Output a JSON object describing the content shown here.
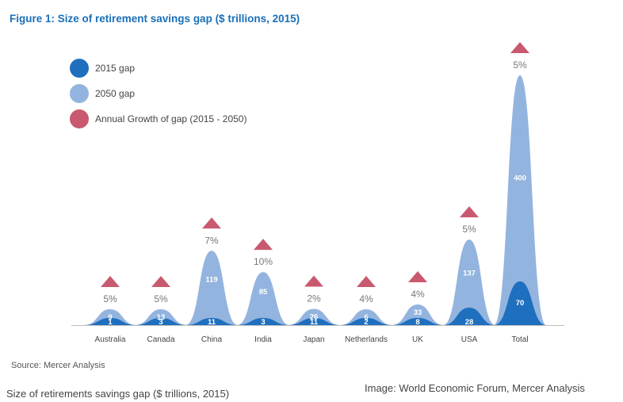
{
  "figure_title": "Figure 1: Size of retirement savings gap ($ trillions, 2015)",
  "legend": [
    {
      "label": "2015 gap",
      "color": "#1f6fbf"
    },
    {
      "label": "2050 gap",
      "color": "#93b4df"
    },
    {
      "label": "Annual Growth of gap (2015 - 2050)",
      "color": "#c9596f"
    }
  ],
  "source": "Source: Mercer Analysis",
  "caption": "Size of retirements savings gap ($ trillions, 2015)",
  "credit": "Image: World Economic Forum, Mercer Analysis",
  "chart_data": {
    "type": "area",
    "title": "Figure 1: Size of retirement savings gap ($ trillions, 2015)",
    "categories": [
      "Australia",
      "Canada",
      "China",
      "India",
      "Japan",
      "Netherlands",
      "UK",
      "USA",
      "Total"
    ],
    "series": [
      {
        "name": "2015 gap",
        "values": [
          1,
          3,
          11,
          3,
          11,
          2,
          8,
          28,
          70
        ],
        "color": "#1f6fbf"
      },
      {
        "name": "2050 gap",
        "values": [
          9,
          13,
          119,
          85,
          26,
          6,
          33,
          137,
          400
        ],
        "color": "#93b4df"
      },
      {
        "name": "Annual Growth of gap (2015 - 2050)",
        "values": [
          "5%",
          "5%",
          "7%",
          "10%",
          "2%",
          "4%",
          "4%",
          "5%",
          "5%"
        ],
        "color": "#c9596f"
      }
    ],
    "legend_position": "top-left",
    "grid": false
  }
}
